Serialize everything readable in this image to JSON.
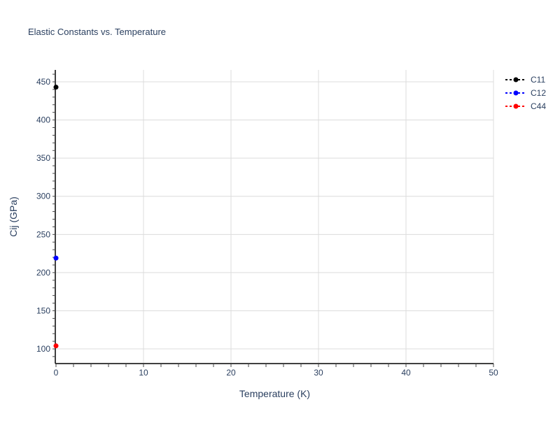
{
  "chart_data": {
    "type": "scatter",
    "mode": "lines+markers",
    "title": "Elastic Constants vs. Temperature",
    "xlabel": "Temperature (K)",
    "ylabel": "Cij (GPa)",
    "xlim": [
      0,
      50
    ],
    "ylim": [
      80.8,
      465.6
    ],
    "xticks": [
      0,
      10,
      20,
      30,
      40,
      50
    ],
    "yticks": [
      100,
      150,
      200,
      250,
      300,
      350,
      400,
      450
    ],
    "grid": true,
    "legend_position": "top-right",
    "series": [
      {
        "name": "C11",
        "color": "#000000",
        "x": [
          0
        ],
        "y": [
          443
        ]
      },
      {
        "name": "C12",
        "color": "#0000ff",
        "x": [
          0
        ],
        "y": [
          219
        ]
      },
      {
        "name": "C44",
        "color": "#ff0000",
        "x": [
          0
        ],
        "y": [
          104
        ]
      }
    ]
  }
}
